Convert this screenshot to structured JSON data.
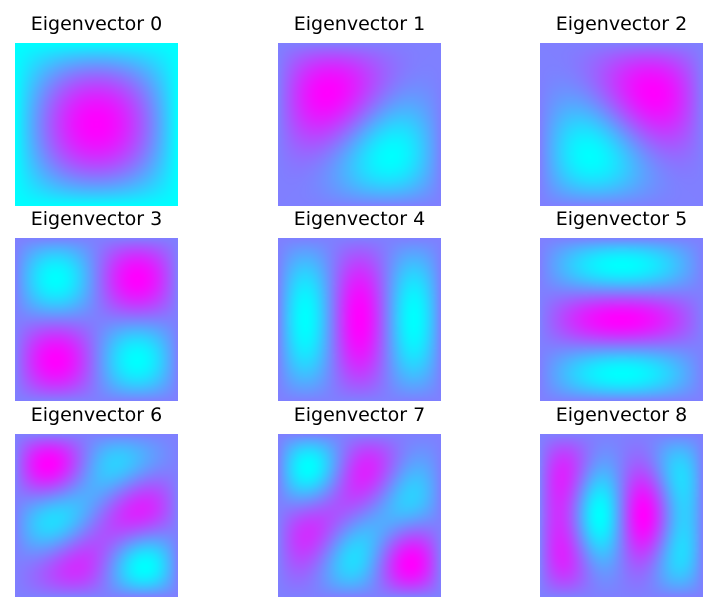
{
  "chart_data": {
    "type": "heatmap",
    "layout": {
      "rows": 3,
      "cols": 3
    },
    "colormap": {
      "low": "#00ffff",
      "high": "#ff00ff"
    },
    "axes_visible": false,
    "panels": [
      {
        "title": "Eigenvector 0",
        "p": 1,
        "q": 1,
        "kind": "bump"
      },
      {
        "title": "Eigenvector 1",
        "p": 1,
        "q": 2,
        "kind": "diag"
      },
      {
        "title": "Eigenvector 2",
        "p": 1,
        "q": 2,
        "kind": "anti"
      },
      {
        "title": "Eigenvector 3",
        "p": 2,
        "q": 2,
        "kind": "product",
        "sign": -1
      },
      {
        "title": "Eigenvector 4",
        "p": 3,
        "q": 1,
        "kind": "product",
        "sign": -1
      },
      {
        "title": "Eigenvector 5",
        "p": 1,
        "q": 3,
        "kind": "product",
        "sign": -1
      },
      {
        "title": "Eigenvector 6",
        "p": 2,
        "q": 3,
        "kind": "mix",
        "sign": 1
      },
      {
        "title": "Eigenvector 7",
        "p": 3,
        "q": 2,
        "kind": "mix",
        "sign": -1
      },
      {
        "title": "Eigenvector 8",
        "p": 4,
        "q": 1,
        "kind": "mode8",
        "sign": 1
      }
    ]
  }
}
